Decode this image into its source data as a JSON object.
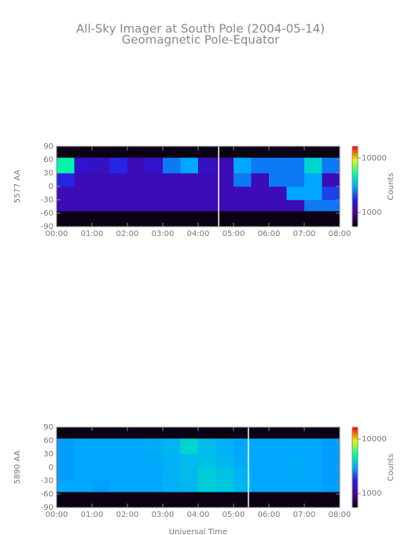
{
  "chart_data": [
    {
      "type": "heatmap",
      "title": "All-Sky Imager at South Pole (2004-05-14)",
      "subtitle": "Geomagnetic Pole-Equator",
      "ylabel": "5577 AA",
      "colorbar_label": "Counts",
      "xlim": [
        0,
        8
      ],
      "ylim": [
        -90,
        90
      ],
      "xticks": [
        {
          "value": 0,
          "label": "00:00"
        },
        {
          "value": 1,
          "label": "01:00"
        },
        {
          "value": 2,
          "label": "02:00"
        },
        {
          "value": 3,
          "label": "03:00"
        },
        {
          "value": 4,
          "label": "04:00"
        },
        {
          "value": 5,
          "label": "05:00"
        },
        {
          "value": 6,
          "label": "06:00"
        },
        {
          "value": 7,
          "label": "07:00"
        },
        {
          "value": 8,
          "label": "08:00"
        }
      ],
      "yticks": [
        -90,
        -60,
        -30,
        0,
        30,
        60,
        90
      ],
      "x_edges": [
        0,
        0.5,
        1,
        1.5,
        2,
        2.5,
        3,
        3.5,
        4,
        4.5,
        5,
        5.5,
        6,
        6.5,
        7,
        7.5,
        8
      ],
      "y_edges": [
        -90,
        -55,
        -30,
        0,
        30,
        65,
        90
      ],
      "z": [
        [
          600,
          600,
          600,
          600,
          600,
          600,
          600,
          600,
          600,
          600,
          600,
          600,
          600,
          600,
          600,
          600
        ],
        [
          1300,
          1300,
          1300,
          1300,
          1300,
          1300,
          1300,
          1300,
          1300,
          1300,
          1300,
          1300,
          1300,
          1300,
          2500,
          2500
        ],
        [
          1300,
          1300,
          1300,
          1300,
          1300,
          1300,
          1300,
          1300,
          1300,
          1300,
          1300,
          1300,
          1300,
          3000,
          3000,
          2000
        ],
        [
          1800,
          1300,
          1300,
          1300,
          1300,
          1300,
          1300,
          1300,
          1300,
          1300,
          2500,
          1300,
          2500,
          2500,
          3000,
          1300
        ],
        [
          5000,
          1500,
          1400,
          1800,
          1300,
          1500,
          2500,
          3000,
          1400,
          1300,
          3000,
          2500,
          2500,
          2500,
          4000,
          2500
        ],
        [
          600,
          600,
          600,
          600,
          600,
          600,
          600,
          600,
          600,
          600,
          600,
          600,
          600,
          600,
          600,
          600
        ]
      ],
      "marker_x": 4.58,
      "clim": [
        550,
        16500
      ],
      "log_color": true,
      "cticks": [
        1000,
        10000
      ],
      "colormap": [
        "#000000",
        "#50008c",
        "#2a18e0",
        "#00a8ff",
        "#00ffa0",
        "#e0ff00",
        "#ff0000"
      ]
    },
    {
      "type": "heatmap",
      "ylabel": "5890 AA",
      "colorbar_label": "Counts",
      "xlabel": "Universal Time",
      "xlim": [
        0,
        8
      ],
      "ylim": [
        -90,
        90
      ],
      "xticks": [
        {
          "value": 0,
          "label": "00:00"
        },
        {
          "value": 1,
          "label": "01:00"
        },
        {
          "value": 2,
          "label": "02:00"
        },
        {
          "value": 3,
          "label": "03:00"
        },
        {
          "value": 4,
          "label": "04:00"
        },
        {
          "value": 5,
          "label": "05:00"
        },
        {
          "value": 6,
          "label": "06:00"
        },
        {
          "value": 7,
          "label": "07:00"
        },
        {
          "value": 8,
          "label": "08:00"
        }
      ],
      "yticks": [
        -90,
        -60,
        -30,
        0,
        30,
        60,
        90
      ],
      "x_edges": [
        0,
        0.5,
        1,
        1.5,
        2,
        2.5,
        3,
        3.5,
        4,
        4.5,
        5,
        5.5,
        6,
        6.5,
        7,
        7.5,
        8
      ],
      "y_edges": [
        -90,
        -55,
        -30,
        0,
        30,
        65,
        90
      ],
      "z": [
        [
          600,
          600,
          600,
          600,
          600,
          600,
          600,
          600,
          600,
          600,
          600,
          600,
          600,
          600,
          600,
          600
        ],
        [
          3000,
          3000,
          2900,
          3000,
          3000,
          3000,
          3200,
          3300,
          3800,
          3700,
          3300,
          3000,
          3000,
          3000,
          3000,
          2900
        ],
        [
          2900,
          3000,
          3000,
          3000,
          3000,
          3000,
          3200,
          3400,
          3800,
          3600,
          3200,
          3000,
          3000,
          3100,
          3000,
          2900
        ],
        [
          2900,
          3000,
          3000,
          3000,
          3000,
          3100,
          3200,
          3400,
          3500,
          3300,
          3100,
          3000,
          3000,
          3100,
          3000,
          2900
        ],
        [
          2900,
          3000,
          3000,
          3000,
          3000,
          3100,
          3300,
          4000,
          3400,
          3200,
          3000,
          3000,
          3000,
          3000,
          3000,
          2900
        ],
        [
          600,
          600,
          600,
          600,
          600,
          600,
          600,
          600,
          600,
          600,
          600,
          600,
          600,
          600,
          600,
          600
        ]
      ],
      "marker_x": 5.42,
      "clim": [
        550,
        16500
      ],
      "log_color": true,
      "cticks": [
        1000,
        10000
      ],
      "colormap": [
        "#000000",
        "#50008c",
        "#2a18e0",
        "#00a8ff",
        "#00ffa0",
        "#e0ff00",
        "#ff0000"
      ]
    }
  ]
}
